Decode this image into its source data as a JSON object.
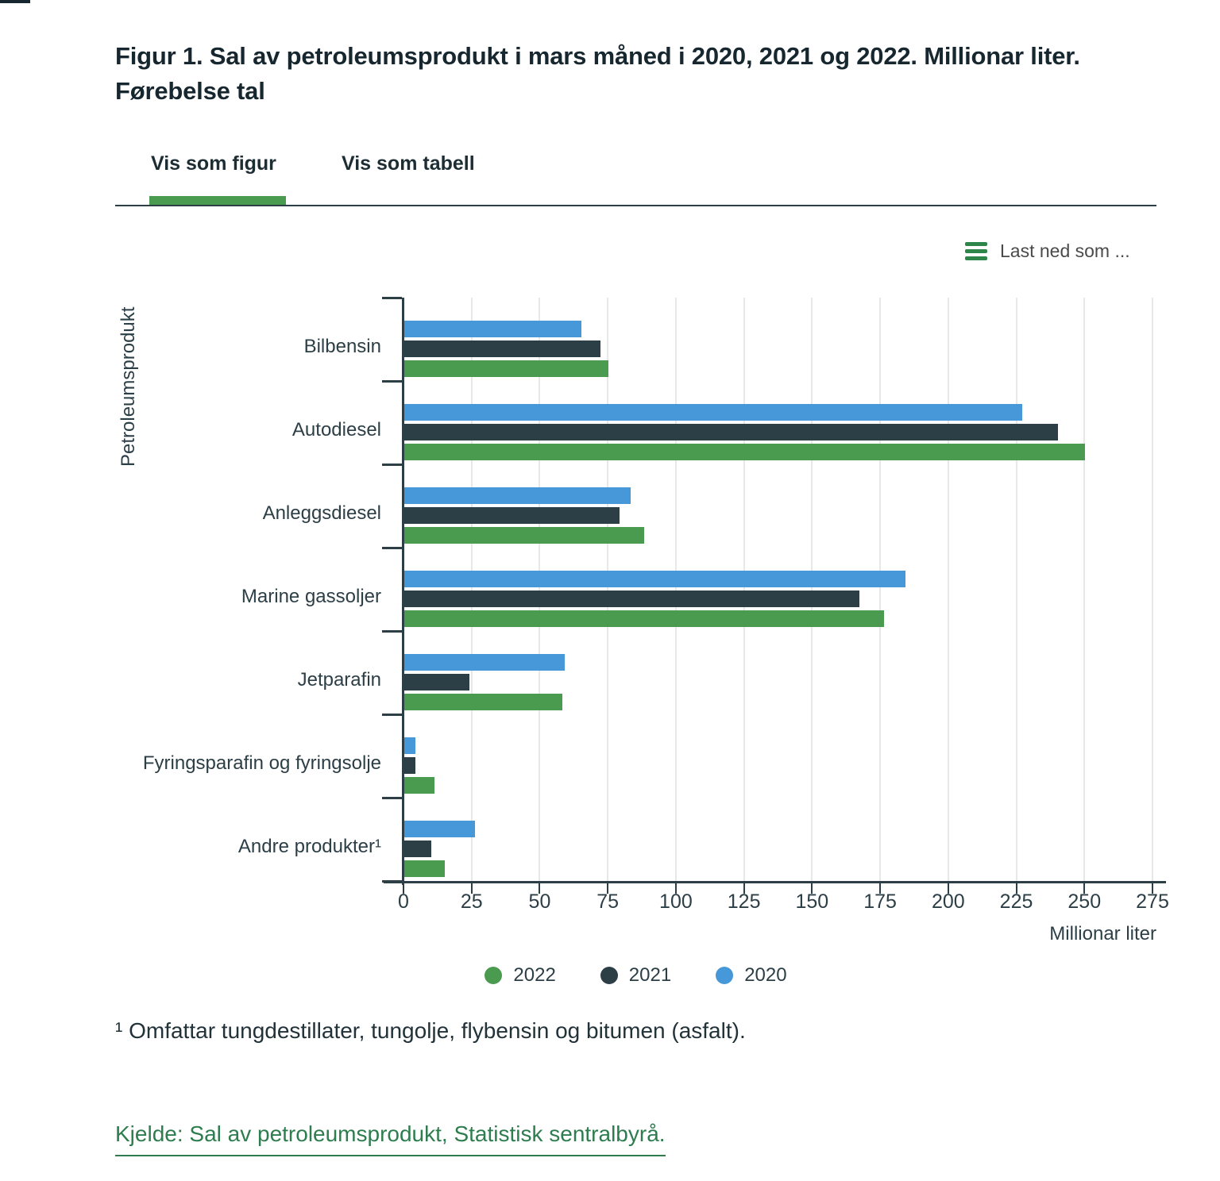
{
  "title": "Figur 1. Sal av petroleumsprodukt i mars måned i 2020, 2021 og 2022. Millionar liter. Førebelse tal",
  "tabs": [
    {
      "label": "Vis som figur",
      "active": true
    },
    {
      "label": "Vis som tabell",
      "active": false
    }
  ],
  "download_label": "Last ned som ...",
  "footnote": "¹ Omfattar tungdestillater, tungolje, flybensin og bitumen (asfalt).",
  "source_text": "Kjelde: Sal av petroleumsprodukt, Statistisk sentralbyrå.",
  "colors": {
    "bar_2022_green": "#4a9a4f",
    "bar_2021_dark": "#2c3e46",
    "bar_2020_blue": "#4698d8",
    "tab_indicator_green": "#4a9a4f",
    "download_icon_green": "#2e8549",
    "source_link_green": "#2e7d4e",
    "axis_dark": "#2c3e46",
    "gridline_gray": "#e8e8e8"
  },
  "chart_data": {
    "type": "bar",
    "orientation": "horizontal",
    "ylabel": "Petroleumsprodukt",
    "xlabel": "Millionar liter",
    "xlim": [
      0,
      275
    ],
    "xticks": [
      0,
      25,
      50,
      75,
      100,
      125,
      150,
      175,
      200,
      225,
      250,
      275
    ],
    "grid": true,
    "categories": [
      "Bilbensin",
      "Autodiesel",
      "Anleggsdiesel",
      "Marine gassoljer",
      "Jetparafin",
      "Fyringsparafin og fyringsolje",
      "Andre produkter¹"
    ],
    "series": [
      {
        "name": "2020",
        "color": "#4698d8",
        "values": [
          65,
          227,
          83,
          184,
          59,
          4,
          26
        ]
      },
      {
        "name": "2021",
        "color": "#2c3e46",
        "values": [
          72,
          240,
          79,
          167,
          24,
          4,
          10
        ]
      },
      {
        "name": "2022",
        "color": "#4a9a4f",
        "values": [
          75,
          250,
          88,
          176,
          58,
          11,
          15
        ]
      }
    ],
    "bar_order_top_to_bottom": [
      "2020",
      "2021",
      "2022"
    ],
    "legend_order": [
      "2022",
      "2021",
      "2020"
    ],
    "legend_position": "bottom"
  }
}
